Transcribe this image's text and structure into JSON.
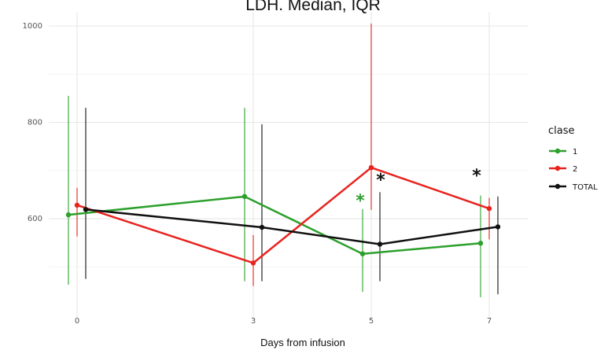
{
  "chart_data": {
    "type": "line",
    "title": "LDH. Median, IQR",
    "xlabel": "Days from infusion",
    "ylabel": "",
    "x": [
      0,
      3,
      5,
      7
    ],
    "x_tick_labels": [
      "0",
      "3",
      "5",
      "7"
    ],
    "y_ticks": [
      600,
      800,
      1000
    ],
    "ylim": [
      432,
      1005
    ],
    "grid": true,
    "legend": {
      "title": "clase",
      "placement": "right"
    },
    "series": [
      {
        "name": "1",
        "color": "#2ca02c",
        "median": [
          608,
          646,
          527,
          549
        ],
        "q1": [
          463,
          470,
          448,
          437
        ],
        "q3": [
          855,
          830,
          620,
          648
        ]
      },
      {
        "name": "2",
        "color": "#e8231e",
        "median": [
          628,
          508,
          706,
          621
        ],
        "q1": [
          563,
          460,
          618,
          557
        ],
        "q3": [
          664,
          566,
          1005,
          643
        ]
      },
      {
        "name": "TOTAL",
        "color": "#111111",
        "median": [
          619,
          582,
          547,
          583
        ],
        "q1": [
          475,
          470,
          470,
          443
        ],
        "q3": [
          830,
          796,
          655,
          646
        ]
      }
    ],
    "annotations": [
      {
        "text": "*",
        "x": 5,
        "y": 645,
        "color": "#2ca02c"
      },
      {
        "text": "*",
        "x": 5,
        "y": 688,
        "color": "#111111"
      },
      {
        "text": "*",
        "x": 7,
        "y": 697,
        "color": "#111111"
      }
    ]
  }
}
